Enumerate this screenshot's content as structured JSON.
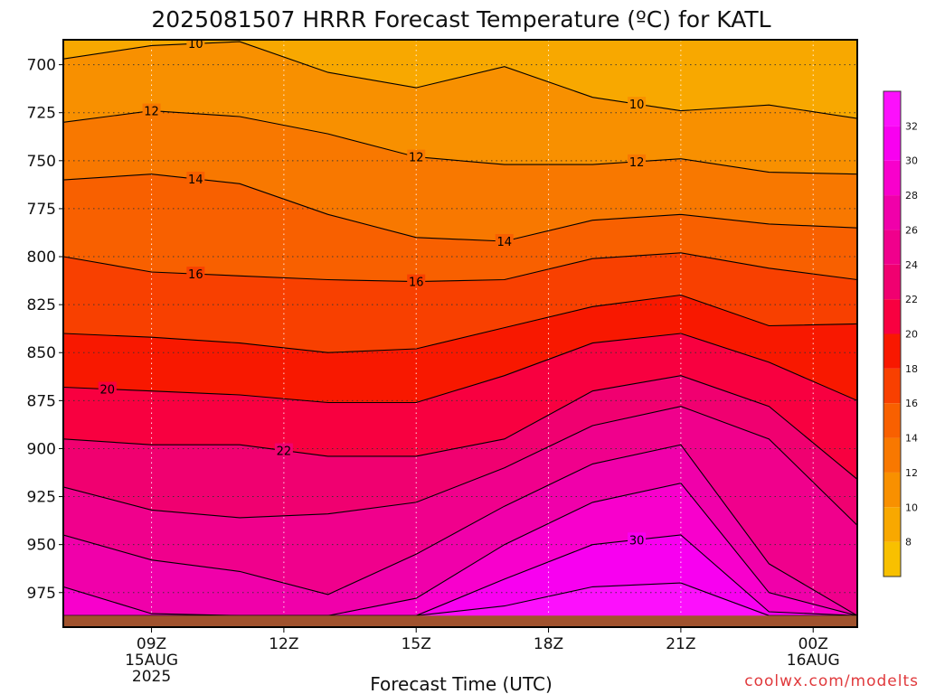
{
  "chart_data": {
    "type": "contour",
    "title": "2025081507 HRRR Forecast Temperature (ºC) for KATL",
    "xlabel": "Forecast Time (UTC)",
    "credit": "coolwx.com/modelts",
    "x_ticks": [
      {
        "hour": 9,
        "label": "09Z",
        "line2": "15AUG",
        "line3": "2025"
      },
      {
        "hour": 12,
        "label": "12Z",
        "line2": "",
        "line3": ""
      },
      {
        "hour": 15,
        "label": "15Z",
        "line2": "",
        "line3": ""
      },
      {
        "hour": 18,
        "label": "18Z",
        "line2": "",
        "line3": ""
      },
      {
        "hour": 21,
        "label": "21Z",
        "line2": "",
        "line3": ""
      },
      {
        "hour": 24,
        "label": "00Z",
        "line2": "16AUG",
        "line3": ""
      }
    ],
    "xlim": [
      7,
      25
    ],
    "y_ticks": [
      700,
      725,
      750,
      775,
      800,
      825,
      850,
      875,
      900,
      925,
      950,
      975
    ],
    "ylim": [
      687,
      993
    ],
    "surface_pressure": 987,
    "grid": true,
    "colorbar": {
      "ticks": [
        8,
        10,
        12,
        14,
        16,
        18,
        20,
        22,
        24,
        26,
        28,
        30,
        32
      ],
      "colors": [
        "#f8c000",
        "#f8a800",
        "#f89000",
        "#f87800",
        "#f86000",
        "#f84000",
        "#f81800",
        "#f80040",
        "#f00070",
        "#f0008c",
        "#f000aa",
        "#f800cc",
        "#f800f0",
        "#fc10fc"
      ],
      "range": [
        6,
        34
      ]
    },
    "x_points": [
      7,
      9,
      11,
      13,
      15,
      17,
      19,
      21,
      23,
      25
    ],
    "contours": [
      {
        "level": 10,
        "pressure": [
          697,
          690,
          688,
          704,
          712,
          701,
          717,
          724,
          721,
          728
        ],
        "labels": [
          {
            "hour": 10,
            "text": "10"
          },
          {
            "hour": 20,
            "text": "10"
          }
        ]
      },
      {
        "level": 12,
        "pressure": [
          730,
          724,
          727,
          736,
          748,
          752,
          752,
          749,
          756,
          757
        ],
        "labels": [
          {
            "hour": 9,
            "text": "12"
          },
          {
            "hour": 15,
            "text": "12"
          },
          {
            "hour": 20,
            "text": "12"
          }
        ]
      },
      {
        "level": 14,
        "pressure": [
          760,
          757,
          762,
          778,
          790,
          792,
          781,
          778,
          783,
          785
        ],
        "labels": [
          {
            "hour": 10,
            "text": "14"
          },
          {
            "hour": 17,
            "text": "14"
          }
        ]
      },
      {
        "level": 16,
        "pressure": [
          800,
          808,
          810,
          812,
          813,
          812,
          801,
          798,
          806,
          812
        ],
        "labels": [
          {
            "hour": 10,
            "text": "16"
          },
          {
            "hour": 15,
            "text": "16"
          }
        ]
      },
      {
        "level": 18,
        "pressure": [
          840,
          842,
          845,
          850,
          848,
          837,
          826,
          820,
          836,
          835
        ],
        "labels": []
      },
      {
        "level": 20,
        "pressure": [
          868,
          870,
          872,
          876,
          876,
          862,
          845,
          840,
          855,
          875
        ],
        "labels": [
          {
            "hour": 8,
            "text": "20"
          }
        ]
      },
      {
        "level": 22,
        "pressure": [
          895,
          898,
          898,
          904,
          904,
          895,
          870,
          862,
          878,
          916
        ],
        "labels": [
          {
            "hour": 12,
            "text": "22"
          }
        ]
      },
      {
        "level": 24,
        "pressure": [
          920,
          932,
          936,
          934,
          928,
          910,
          888,
          878,
          895,
          940
        ],
        "labels": []
      },
      {
        "level": 26,
        "pressure": [
          945,
          958,
          964,
          976,
          955,
          930,
          908,
          898,
          960,
          987
        ],
        "labels": []
      },
      {
        "level": 28,
        "pressure": [
          972,
          986,
          987,
          987,
          978,
          950,
          928,
          918,
          975,
          987
        ],
        "labels": []
      },
      {
        "level": 30,
        "pressure": [
          987,
          987,
          987,
          987,
          987,
          968,
          950,
          945,
          985,
          987
        ],
        "labels": [
          {
            "hour": 20,
            "text": "30"
          }
        ]
      },
      {
        "level": 32,
        "pressure": [
          987,
          987,
          987,
          987,
          987,
          982,
          972,
          970,
          987,
          987
        ],
        "labels": []
      }
    ]
  }
}
